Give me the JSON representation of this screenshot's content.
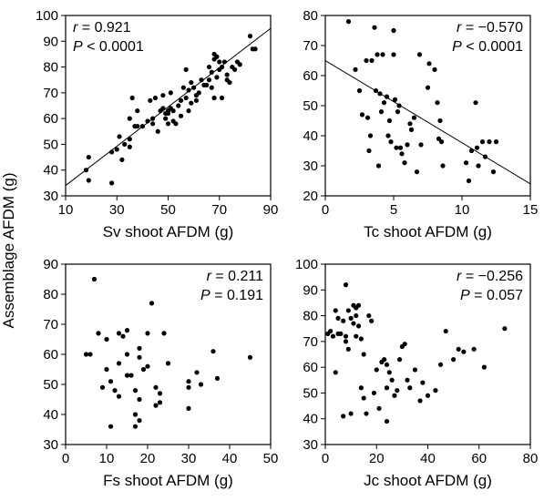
{
  "y_axis_label": "Assemblage AFDM (g)",
  "chart_data": [
    {
      "type": "scatter",
      "xlabel": "Sv shoot AFDM (g)",
      "xlim": [
        10,
        90
      ],
      "ylim": [
        30,
        100
      ],
      "xticks": [
        10,
        30,
        50,
        70,
        90
      ],
      "yticks": [
        30,
        40,
        50,
        60,
        70,
        80,
        90,
        100
      ],
      "stat": {
        "r_sym": "r",
        "r_val": "= 0.921",
        "p_sym": "P",
        "p_val": "< 0.0001",
        "position": "top-left"
      },
      "fit": {
        "x": [
          10,
          90
        ],
        "y": [
          34,
          95
        ]
      },
      "points": [
        [
          18,
          40
        ],
        [
          19,
          36
        ],
        [
          19,
          45
        ],
        [
          28,
          35
        ],
        [
          28,
          47
        ],
        [
          30,
          48
        ],
        [
          31,
          53
        ],
        [
          32,
          44
        ],
        [
          33,
          50
        ],
        [
          35,
          49
        ],
        [
          35,
          60
        ],
        [
          35,
          52
        ],
        [
          36,
          68
        ],
        [
          37,
          57
        ],
        [
          38,
          63
        ],
        [
          38,
          57
        ],
        [
          40,
          57
        ],
        [
          42,
          59
        ],
        [
          43,
          67
        ],
        [
          44,
          60
        ],
        [
          44,
          58
        ],
        [
          45,
          68
        ],
        [
          46,
          55
        ],
        [
          47,
          63
        ],
        [
          48,
          64
        ],
        [
          48,
          69
        ],
        [
          49,
          60
        ],
        [
          49,
          62
        ],
        [
          50,
          63
        ],
        [
          50,
          62
        ],
        [
          50,
          58
        ],
        [
          51,
          64
        ],
        [
          51,
          70
        ],
        [
          52,
          59
        ],
        [
          52,
          63
        ],
        [
          53,
          58
        ],
        [
          54,
          65
        ],
        [
          55,
          67
        ],
        [
          55,
          61
        ],
        [
          56,
          72
        ],
        [
          57,
          68
        ],
        [
          57,
          79
        ],
        [
          58,
          63
        ],
        [
          58,
          71
        ],
        [
          59,
          66
        ],
        [
          59,
          74
        ],
        [
          60,
          72
        ],
        [
          61,
          67
        ],
        [
          61,
          69
        ],
        [
          62,
          70
        ],
        [
          63,
          75
        ],
        [
          64,
          73
        ],
        [
          65,
          73
        ],
        [
          66,
          75
        ],
        [
          66,
          80
        ],
        [
          67,
          78
        ],
        [
          67,
          72
        ],
        [
          68,
          83
        ],
        [
          68,
          85
        ],
        [
          68,
          68
        ],
        [
          69,
          84
        ],
        [
          69,
          76
        ],
        [
          70,
          79
        ],
        [
          70,
          82
        ],
        [
          71,
          80
        ],
        [
          71,
          68
        ],
        [
          72,
          82
        ],
        [
          73,
          77
        ],
        [
          73,
          75
        ],
        [
          74,
          74
        ],
        [
          75,
          80
        ],
        [
          76,
          79
        ],
        [
          77,
          82
        ],
        [
          78,
          81
        ],
        [
          82,
          92
        ],
        [
          83,
          87
        ],
        [
          84,
          87
        ]
      ]
    },
    {
      "type": "scatter",
      "xlabel": "Tc shoot AFDM (g)",
      "xlim": [
        0,
        15
      ],
      "ylim": [
        20,
        80
      ],
      "xticks": [
        0,
        5,
        10,
        15
      ],
      "yticks": [
        20,
        30,
        40,
        50,
        60,
        70,
        80
      ],
      "stat": {
        "r_sym": "r",
        "r_val": "= −0.570",
        "p_sym": "P",
        "p_val": "< 0.0001",
        "position": "top-right"
      },
      "fit": {
        "x": [
          0,
          15
        ],
        "y": [
          65,
          24
        ]
      },
      "points": [
        [
          1.7,
          78
        ],
        [
          2.2,
          62
        ],
        [
          2.5,
          55
        ],
        [
          2.7,
          47
        ],
        [
          3.0,
          65
        ],
        [
          3.1,
          46
        ],
        [
          3.2,
          35
        ],
        [
          3.3,
          40
        ],
        [
          3.4,
          65
        ],
        [
          3.6,
          76
        ],
        [
          3.7,
          55
        ],
        [
          3.8,
          67
        ],
        [
          3.9,
          30
        ],
        [
          4.0,
          54
        ],
        [
          4.1,
          48
        ],
        [
          4.2,
          67
        ],
        [
          4.3,
          51
        ],
        [
          4.5,
          53
        ],
        [
          4.6,
          40
        ],
        [
          4.7,
          45
        ],
        [
          4.8,
          38
        ],
        [
          5.0,
          75
        ],
        [
          5.0,
          67
        ],
        [
          5.1,
          52
        ],
        [
          5.2,
          36
        ],
        [
          5.3,
          48
        ],
        [
          5.4,
          50
        ],
        [
          5.5,
          36
        ],
        [
          5.6,
          34
        ],
        [
          5.8,
          31
        ],
        [
          6.0,
          37
        ],
        [
          6.2,
          44
        ],
        [
          6.3,
          42
        ],
        [
          6.5,
          46
        ],
        [
          6.7,
          28
        ],
        [
          6.9,
          67
        ],
        [
          7.0,
          37
        ],
        [
          7.5,
          56
        ],
        [
          7.6,
          64
        ],
        [
          8.0,
          62
        ],
        [
          8.2,
          51
        ],
        [
          8.3,
          39
        ],
        [
          8.4,
          45
        ],
        [
          8.5,
          38
        ],
        [
          8.6,
          30
        ],
        [
          10.3,
          31
        ],
        [
          10.5,
          25
        ],
        [
          10.7,
          35
        ],
        [
          11.0,
          51
        ],
        [
          11.1,
          36
        ],
        [
          11.2,
          30
        ],
        [
          11.5,
          38
        ],
        [
          11.7,
          33
        ],
        [
          12.0,
          38
        ],
        [
          12.3,
          28
        ],
        [
          12.5,
          38
        ]
      ]
    },
    {
      "type": "scatter",
      "xlabel": "Fs shoot AFDM (g)",
      "xlim": [
        0,
        50
      ],
      "ylim": [
        30,
        90
      ],
      "xticks": [
        0,
        10,
        20,
        30,
        40,
        50
      ],
      "yticks": [
        30,
        40,
        50,
        60,
        70,
        80,
        90
      ],
      "stat": {
        "r_sym": "r",
        "r_val": "= 0.211",
        "p_sym": "P",
        "p_val": "= 0.191",
        "position": "top-right"
      },
      "fit": null,
      "points": [
        [
          5,
          60
        ],
        [
          6,
          60
        ],
        [
          7,
          85
        ],
        [
          8,
          67
        ],
        [
          9,
          49
        ],
        [
          10,
          55
        ],
        [
          10,
          65
        ],
        [
          11,
          36
        ],
        [
          11,
          51
        ],
        [
          12,
          48
        ],
        [
          13,
          67
        ],
        [
          13,
          57
        ],
        [
          13,
          46
        ],
        [
          14,
          66
        ],
        [
          15,
          60
        ],
        [
          15,
          53
        ],
        [
          15,
          68
        ],
        [
          16,
          53
        ],
        [
          17,
          48
        ],
        [
          17,
          40
        ],
        [
          17,
          36
        ],
        [
          18,
          38
        ],
        [
          18,
          45
        ],
        [
          18,
          59
        ],
        [
          18,
          62
        ],
        [
          19,
          55
        ],
        [
          20,
          56
        ],
        [
          20,
          67
        ],
        [
          21,
          77
        ],
        [
          22,
          43
        ],
        [
          22,
          49
        ],
        [
          23,
          47
        ],
        [
          23,
          44
        ],
        [
          24,
          67
        ],
        [
          25,
          57
        ],
        [
          30,
          42
        ],
        [
          30,
          51
        ],
        [
          30,
          49
        ],
        [
          32,
          54
        ],
        [
          33,
          50
        ],
        [
          36,
          61
        ],
        [
          37,
          52
        ],
        [
          45,
          59
        ]
      ]
    },
    {
      "type": "scatter",
      "xlabel": "Jc shoot AFDM (g)",
      "xlim": [
        0,
        80
      ],
      "ylim": [
        30,
        100
      ],
      "xticks": [
        0,
        20,
        40,
        60,
        80
      ],
      "yticks": [
        30,
        40,
        50,
        60,
        70,
        80,
        90,
        100
      ],
      "stat": {
        "r_sym": "r",
        "r_val": "= −0.256",
        "p_sym": "P",
        "p_val": "= 0.057",
        "position": "top-right"
      },
      "fit": null,
      "points": [
        [
          1,
          73
        ],
        [
          2,
          74
        ],
        [
          3,
          72
        ],
        [
          4,
          82
        ],
        [
          4,
          58
        ],
        [
          5,
          73
        ],
        [
          5,
          79
        ],
        [
          6,
          73
        ],
        [
          7,
          78
        ],
        [
          7,
          41
        ],
        [
          8,
          92
        ],
        [
          8,
          72
        ],
        [
          8,
          70
        ],
        [
          9,
          82
        ],
        [
          9,
          67
        ],
        [
          10,
          79
        ],
        [
          10,
          42
        ],
        [
          11,
          84
        ],
        [
          11,
          77
        ],
        [
          12,
          80
        ],
        [
          12,
          83
        ],
        [
          12,
          72
        ],
        [
          13,
          84
        ],
        [
          13,
          76
        ],
        [
          14,
          71
        ],
        [
          14,
          52
        ],
        [
          15,
          65
        ],
        [
          15,
          48
        ],
        [
          16,
          42
        ],
        [
          17,
          80
        ],
        [
          18,
          78
        ],
        [
          19,
          50
        ],
        [
          20,
          59
        ],
        [
          21,
          44
        ],
        [
          22,
          62
        ],
        [
          23,
          63
        ],
        [
          24,
          39
        ],
        [
          24,
          61
        ],
        [
          24,
          52
        ],
        [
          25,
          58
        ],
        [
          26,
          55
        ],
        [
          27,
          49
        ],
        [
          28,
          51
        ],
        [
          29,
          63
        ],
        [
          30,
          68
        ],
        [
          31,
          69
        ],
        [
          32,
          55
        ],
        [
          33,
          52
        ],
        [
          35,
          59
        ],
        [
          37,
          47
        ],
        [
          38,
          54
        ],
        [
          40,
          49
        ],
        [
          43,
          51
        ],
        [
          45,
          61
        ],
        [
          47,
          74
        ],
        [
          50,
          63
        ],
        [
          52,
          67
        ],
        [
          54,
          66
        ],
        [
          58,
          67
        ],
        [
          62,
          60
        ],
        [
          70,
          75
        ]
      ]
    }
  ]
}
